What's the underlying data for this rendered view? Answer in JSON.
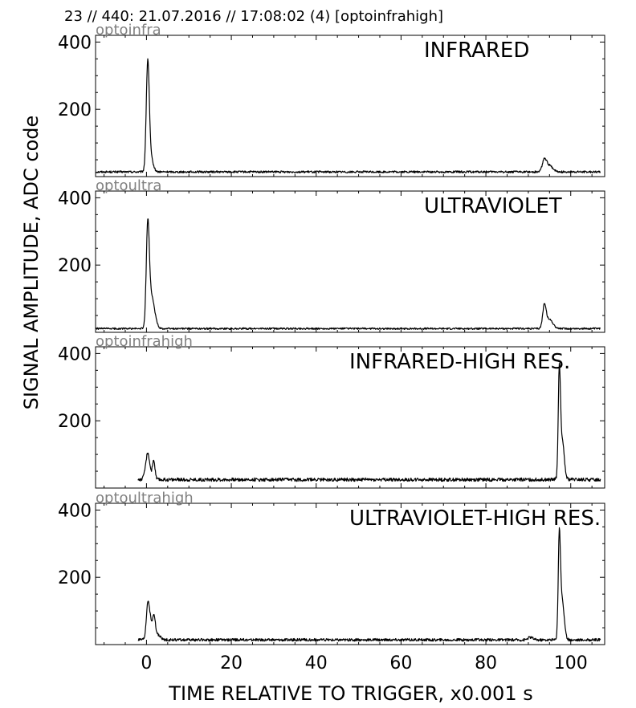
{
  "header": "23 // 440:   21.07.2016 // 17:08:02 (4)  [optoinfrahigh]",
  "chart_data": {
    "type": "line",
    "xlabel": "TIME RELATIVE TO TRIGGER,   x0.001 s",
    "ylabel": "SIGNAL AMPLITUDE,  ADC code",
    "xlim": [
      -12,
      108
    ],
    "ylim": [
      0,
      420
    ],
    "xticks": [
      0,
      20,
      40,
      60,
      80,
      100
    ],
    "xtick_labels": [
      "0",
      "20",
      "40",
      "60",
      "80",
      "100"
    ],
    "yticks": [
      200,
      400
    ],
    "ytick_labels": [
      "200",
      "400"
    ],
    "grid": false,
    "line_color": "#000000",
    "panels": [
      {
        "source": "optoinfra",
        "title": "INFRARED",
        "baseline": 14,
        "x_start": -12,
        "x_end": 107,
        "noise": 3,
        "peaks": [
          {
            "x": 0.3,
            "y": 322,
            "width": 0.35
          },
          {
            "x": 0.9,
            "y": 60,
            "width": 0.6
          },
          {
            "x": 93.8,
            "y": 48,
            "width": 0.5
          },
          {
            "x": 95.0,
            "y": 32,
            "width": 0.8
          }
        ]
      },
      {
        "source": "optoultra",
        "title": "ULTRAVIOLET",
        "baseline": 11,
        "x_start": -12,
        "x_end": 107,
        "noise": 2.5,
        "peaks": [
          {
            "x": 0.3,
            "y": 295,
            "width": 0.35
          },
          {
            "x": 1.0,
            "y": 95,
            "width": 0.6
          },
          {
            "x": 1.8,
            "y": 42,
            "width": 0.6
          },
          {
            "x": 93.8,
            "y": 78,
            "width": 0.4
          },
          {
            "x": 95.0,
            "y": 38,
            "width": 0.8
          }
        ]
      },
      {
        "source": "optoinfrahigh",
        "title": "INFRARED-HIGH RES.",
        "baseline": 25,
        "x_start": -2,
        "x_end": 107,
        "noise": 5,
        "peaks": [
          {
            "x": 0.3,
            "y": 102,
            "width": 0.5
          },
          {
            "x": 1.7,
            "y": 82,
            "width": 0.3
          },
          {
            "x": 97.3,
            "y": 305,
            "width": 0.25
          },
          {
            "x": 97.9,
            "y": 150,
            "width": 0.5
          }
        ]
      },
      {
        "source": "optoultrahigh",
        "title": "ULTRAVIOLET-HIGH RES.",
        "baseline": 14,
        "x_start": -2,
        "x_end": 107,
        "noise": 4,
        "peaks": [
          {
            "x": 0.3,
            "y": 102,
            "width": 0.35
          },
          {
            "x": 0.9,
            "y": 68,
            "width": 0.5
          },
          {
            "x": 1.8,
            "y": 72,
            "width": 0.3
          },
          {
            "x": 2.6,
            "y": 30,
            "width": 0.6
          },
          {
            "x": 90.5,
            "y": 22,
            "width": 0.6
          },
          {
            "x": 97.3,
            "y": 285,
            "width": 0.25
          },
          {
            "x": 97.9,
            "y": 140,
            "width": 0.5
          }
        ]
      }
    ]
  }
}
